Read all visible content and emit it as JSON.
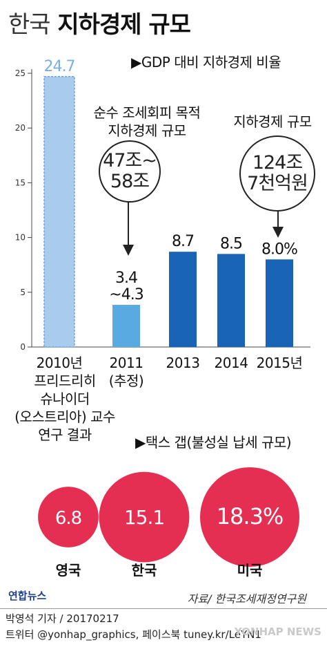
{
  "title": {
    "light": "한국",
    "bold": "지하경제 규모"
  },
  "gdp_section": {
    "label": "▶GDP 대비 지하경제 비율"
  },
  "annotations": {
    "tax_evasion_label": [
      "순수 조세회피 목적",
      "지하경제 규모"
    ],
    "tax_evasion_bubble": [
      "47조~",
      "58조"
    ],
    "size_2015_label": "지하경제 규모",
    "size_2015_bubble": [
      "124조",
      "7천억원"
    ]
  },
  "colors": {
    "bar_2010": "#a8cbee",
    "bar_2010_border": "#6ea1dd",
    "bar_2011": "#5aaae2",
    "bar_main": "#1a64b8",
    "label_2010": "#7aaee0",
    "circle": "#e52f52",
    "axis": "#444444"
  },
  "chart_data": [
    {
      "type": "bar",
      "categories": [
        "2010년",
        "2011",
        "2013",
        "2014",
        "2015년"
      ],
      "category_sublabels": [
        [
          "프리드리히",
          "슈나이더",
          "(오스트리아) 교수",
          "연구 결과"
        ],
        [
          "(추정)"
        ],
        [],
        [],
        []
      ],
      "values": [
        24.7,
        3.85,
        8.7,
        8.5,
        8.0
      ],
      "value_labels": [
        "24.7",
        "3.4\n~4.3",
        "8.7",
        "8.5",
        "8.0%"
      ],
      "range_2011": [
        3.4,
        4.3
      ],
      "ylim": [
        0,
        25
      ],
      "yticks": [
        0,
        5,
        10,
        15,
        20,
        25
      ],
      "ylabel": "",
      "xlabel": ""
    },
    {
      "type": "bubble",
      "title": "▶택스 갭(불성실 납세 규모)",
      "categories": [
        "영국",
        "한국",
        "미국"
      ],
      "values": [
        6.8,
        15.1,
        18.3
      ],
      "value_labels": [
        "6.8",
        "15.1",
        "18.3%"
      ]
    }
  ],
  "footer": {
    "logo": "연합뉴스",
    "source": "자료/ 한국조세재정연구원",
    "author": "박영석 기자 / 20170217",
    "twitter": "트위터 @yonhap_graphics, 페이스북 tuney.kr/LeYN1",
    "watermark": "YONHAP NEWS"
  }
}
